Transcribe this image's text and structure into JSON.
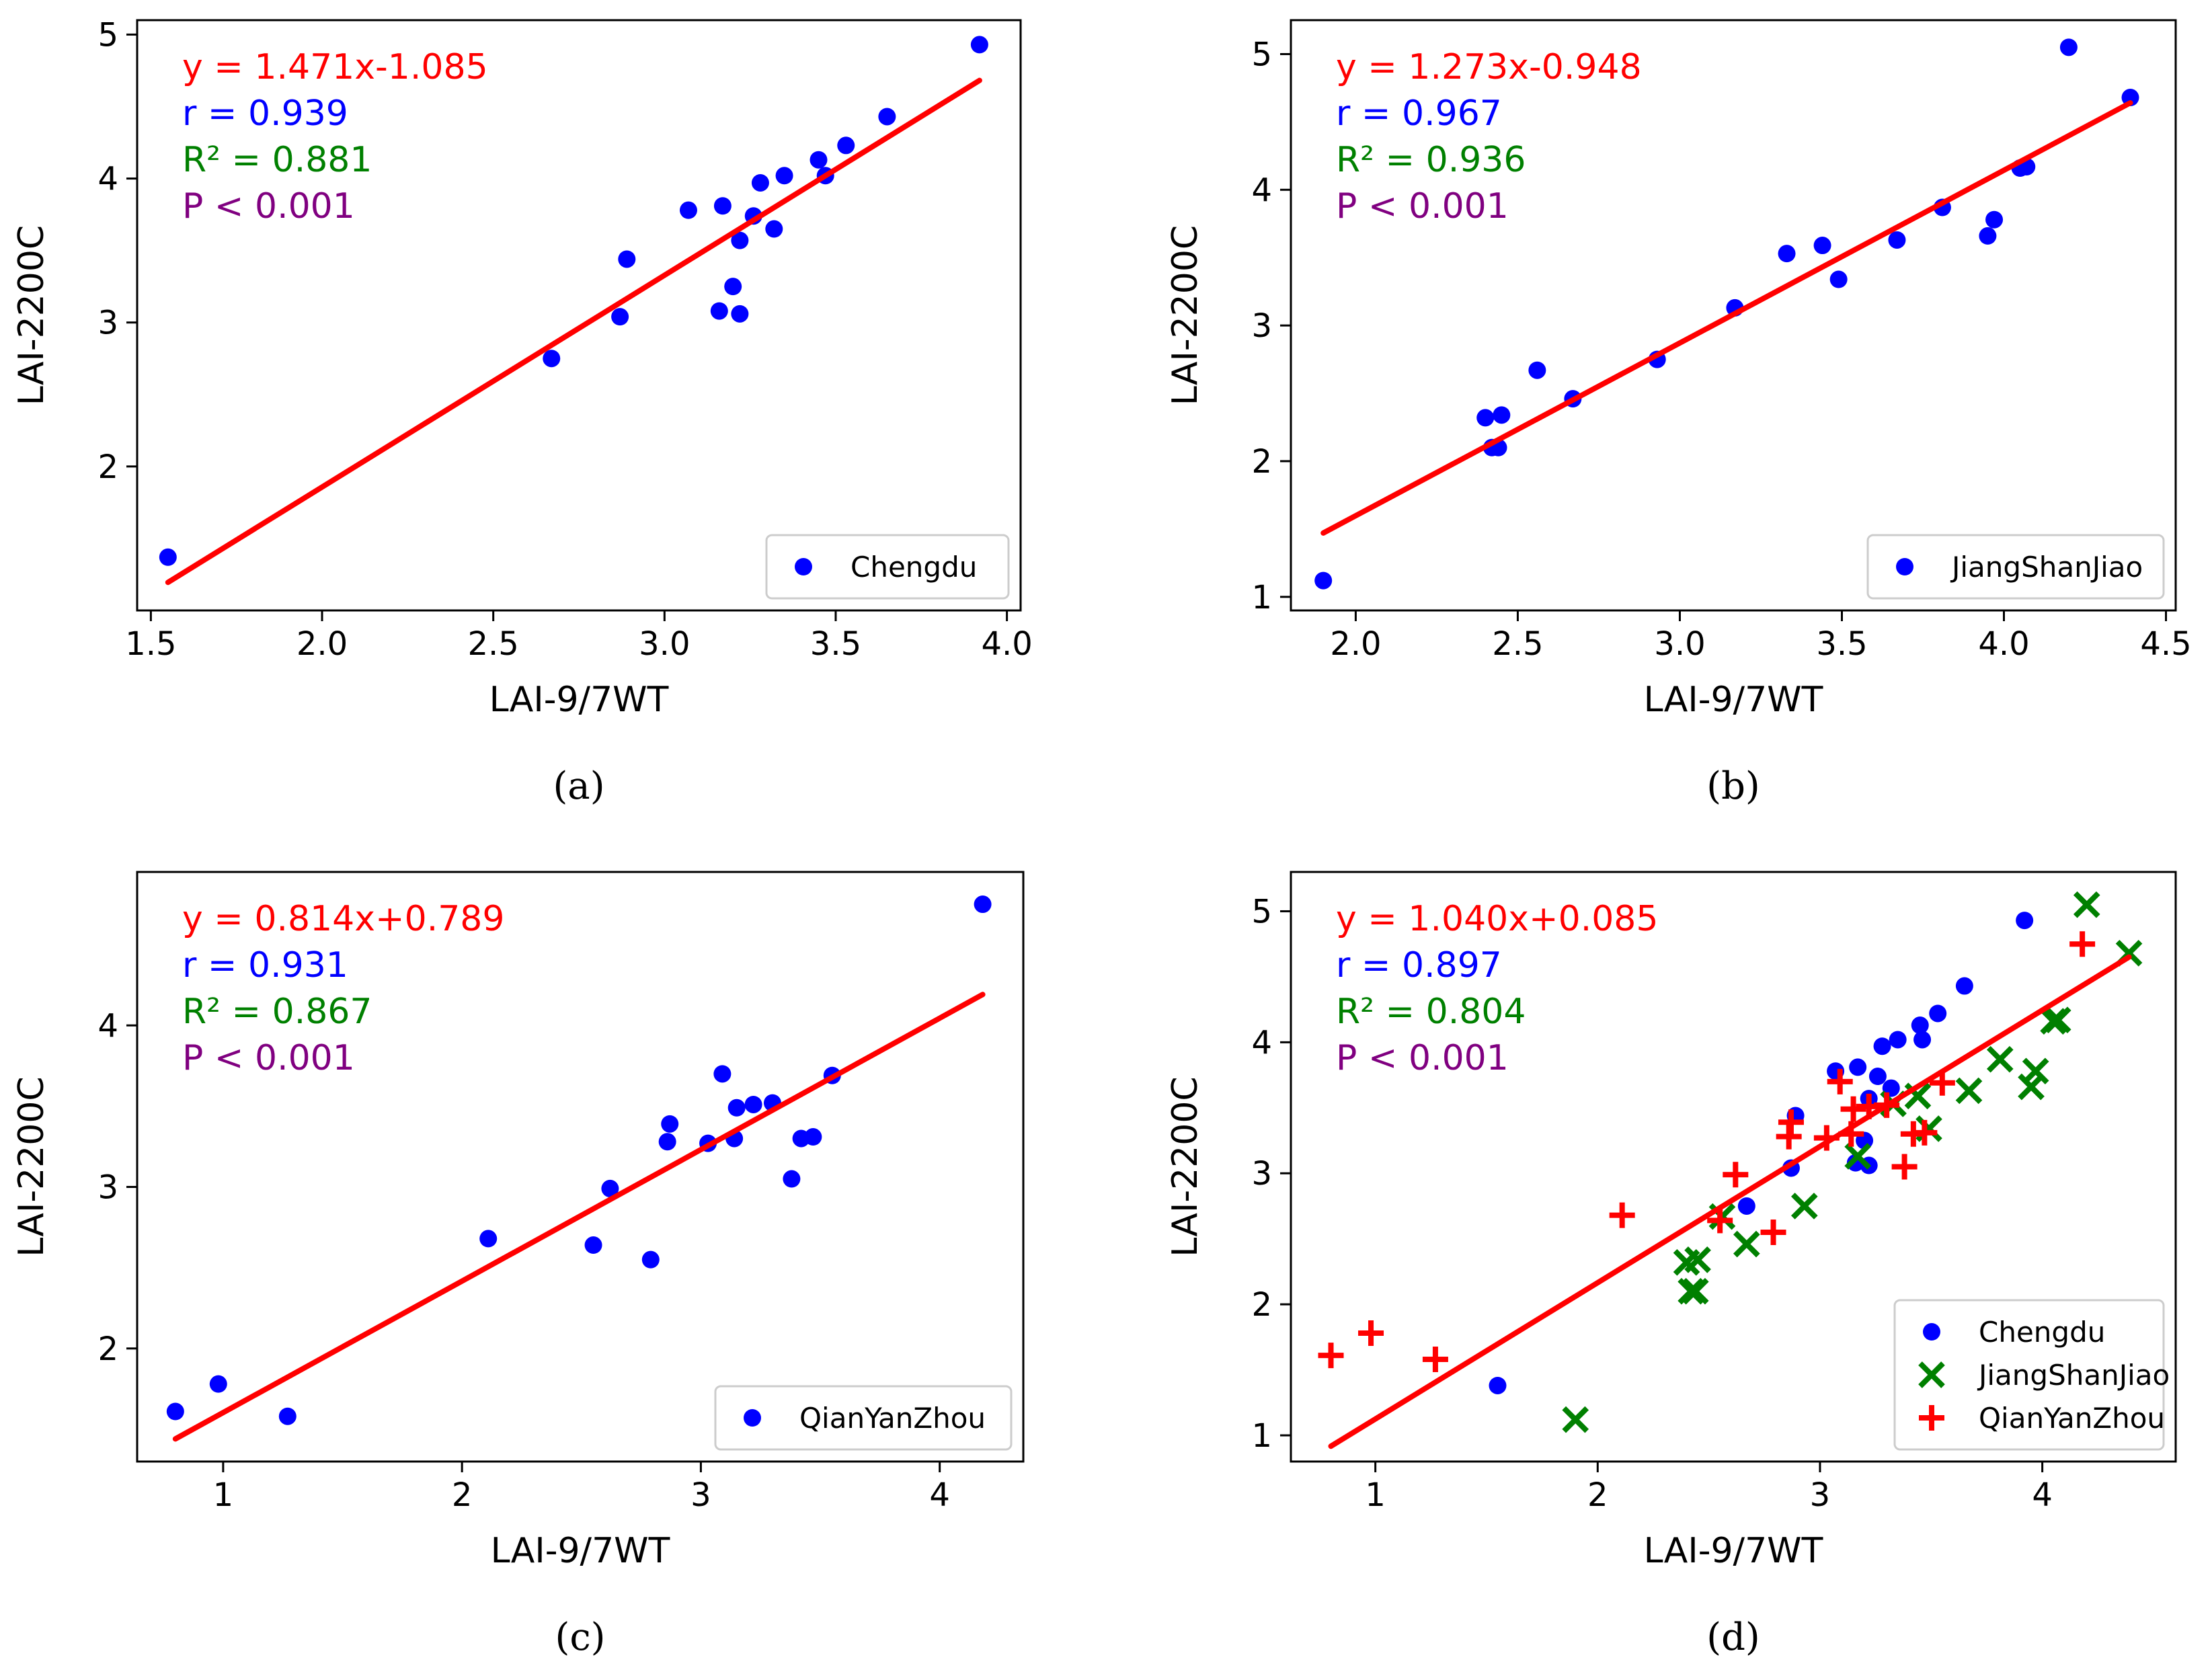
{
  "colors": {
    "regression": "#ff0000",
    "chengdu": "#0000ff",
    "jiangshanjiao": "#008000",
    "qianyanzhou": "#ff0000",
    "eq_color": "#ff0000",
    "r_color": "#0000ff",
    "r2_color": "#008000",
    "p_color": "#800080"
  },
  "chart_data": [
    {
      "type": "scatter",
      "panel_label": "(a)",
      "xlabel": "LAI-9/7WT",
      "ylabel": "LAI-2200C",
      "xlim": [
        1.46,
        4.04
      ],
      "ylim": [
        1.0,
        5.1
      ],
      "xticks": [
        1.5,
        2.0,
        2.5,
        3.0,
        3.5,
        4.0
      ],
      "xtick_labels": [
        "1.5",
        "2.0",
        "2.5",
        "3.0",
        "3.5",
        "4.0"
      ],
      "yticks": [
        2,
        3,
        4,
        5
      ],
      "ytick_labels": [
        "2",
        "3",
        "4",
        "5"
      ],
      "legend_position": "lower-right",
      "stats": {
        "equation": "y = 1.471x-1.085",
        "r": "r = 0.939",
        "r2": "R² = 0.881",
        "p": "P < 0.001"
      },
      "fit": {
        "slope": 1.471,
        "intercept": -1.085,
        "x_range": [
          1.55,
          3.92
        ]
      },
      "series": [
        {
          "name": "Chengdu",
          "marker": "dot",
          "color": "#0000ff",
          "points": [
            [
              1.55,
              1.37
            ],
            [
              2.67,
              2.75
            ],
            [
              2.87,
              3.04
            ],
            [
              2.89,
              3.44
            ],
            [
              3.07,
              3.78
            ],
            [
              3.16,
              3.08
            ],
            [
              3.17,
              3.81
            ],
            [
              3.2,
              3.25
            ],
            [
              3.22,
              3.06
            ],
            [
              3.22,
              3.57
            ],
            [
              3.26,
              3.74
            ],
            [
              3.28,
              3.97
            ],
            [
              3.32,
              3.65
            ],
            [
              3.35,
              4.02
            ],
            [
              3.45,
              4.13
            ],
            [
              3.47,
              4.02
            ],
            [
              3.53,
              4.23
            ],
            [
              3.65,
              4.43
            ],
            [
              3.92,
              4.93
            ]
          ]
        }
      ]
    },
    {
      "type": "scatter",
      "panel_label": "(b)",
      "xlabel": "LAI-9/7WT",
      "ylabel": "LAI-2200C",
      "xlim": [
        1.8,
        4.53
      ],
      "ylim": [
        0.9,
        5.25
      ],
      "xticks": [
        2.0,
        2.5,
        3.0,
        3.5,
        4.0,
        4.5
      ],
      "xtick_labels": [
        "2.0",
        "2.5",
        "3.0",
        "3.5",
        "4.0",
        "4.5"
      ],
      "yticks": [
        1,
        2,
        3,
        4,
        5
      ],
      "ytick_labels": [
        "1",
        "2",
        "3",
        "4",
        "5"
      ],
      "legend_position": "lower-right",
      "stats": {
        "equation": "y = 1.273x-0.948",
        "r": "r = 0.967",
        "r2": "R² = 0.936",
        "p": "P < 0.001"
      },
      "fit": {
        "slope": 1.273,
        "intercept": -0.948,
        "x_range": [
          1.9,
          4.39
        ]
      },
      "series": [
        {
          "name": "JiangShanJiao",
          "marker": "dot",
          "color": "#0000ff",
          "points": [
            [
              1.9,
              1.12
            ],
            [
              2.4,
              2.32
            ],
            [
              2.42,
              2.1
            ],
            [
              2.44,
              2.1
            ],
            [
              2.45,
              2.34
            ],
            [
              2.56,
              2.67
            ],
            [
              2.67,
              2.46
            ],
            [
              2.93,
              2.75
            ],
            [
              3.17,
              3.13
            ],
            [
              3.33,
              3.53
            ],
            [
              3.44,
              3.59
            ],
            [
              3.49,
              3.34
            ],
            [
              3.67,
              3.63
            ],
            [
              3.81,
              3.87
            ],
            [
              3.95,
              3.66
            ],
            [
              3.97,
              3.78
            ],
            [
              4.05,
              4.16
            ],
            [
              4.07,
              4.17
            ],
            [
              4.2,
              5.05
            ],
            [
              4.39,
              4.68
            ]
          ]
        }
      ]
    },
    {
      "type": "scatter",
      "panel_label": "(c)",
      "xlabel": "LAI-9/7WT",
      "ylabel": "LAI-2200C",
      "xlim": [
        0.64,
        4.35
      ],
      "ylim": [
        1.3,
        4.95
      ],
      "xticks": [
        1,
        2,
        3,
        4
      ],
      "xtick_labels": [
        "1",
        "2",
        "3",
        "4"
      ],
      "yticks": [
        2,
        3,
        4
      ],
      "ytick_labels": [
        "2",
        "3",
        "4"
      ],
      "legend_position": "lower-right",
      "stats": {
        "equation": "y = 0.814x+0.789",
        "r": "r = 0.931",
        "r2": "R² = 0.867",
        "p": "P < 0.001"
      },
      "fit": {
        "slope": 0.814,
        "intercept": 0.789,
        "x_range": [
          0.8,
          4.18
        ]
      },
      "series": [
        {
          "name": "QianYanZhou",
          "marker": "dot",
          "color": "#0000ff",
          "points": [
            [
              0.8,
              1.61
            ],
            [
              0.98,
              1.78
            ],
            [
              1.27,
              1.58
            ],
            [
              2.11,
              2.68
            ],
            [
              2.55,
              2.64
            ],
            [
              2.62,
              2.99
            ],
            [
              2.79,
              2.55
            ],
            [
              2.86,
              3.28
            ],
            [
              2.87,
              3.39
            ],
            [
              3.03,
              3.27
            ],
            [
              3.09,
              3.7
            ],
            [
              3.14,
              3.3
            ],
            [
              3.15,
              3.49
            ],
            [
              3.22,
              3.51
            ],
            [
              3.3,
              3.52
            ],
            [
              3.38,
              3.05
            ],
            [
              3.42,
              3.3
            ],
            [
              3.47,
              3.31
            ],
            [
              3.55,
              3.69
            ],
            [
              4.18,
              4.75
            ]
          ]
        }
      ]
    },
    {
      "type": "scatter",
      "panel_label": "(d)",
      "xlabel": "LAI-9/7WT",
      "ylabel": "LAI-2200C",
      "xlim": [
        0.62,
        4.6
      ],
      "ylim": [
        0.8,
        5.3
      ],
      "xticks": [
        1,
        2,
        3,
        4
      ],
      "xtick_labels": [
        "1",
        "2",
        "3",
        "4"
      ],
      "yticks": [
        1,
        2,
        3,
        4,
        5
      ],
      "ytick_labels": [
        "1",
        "2",
        "3",
        "4",
        "5"
      ],
      "legend_position": "lower-right",
      "stats": {
        "equation": "y = 1.040x+0.085",
        "r": "r = 0.897",
        "r2": "R² = 0.804",
        "p": "P < 0.001"
      },
      "fit": {
        "slope": 1.04,
        "intercept": 0.085,
        "x_range": [
          0.8,
          4.39
        ]
      },
      "series": [
        {
          "name": "Chengdu",
          "marker": "dot",
          "color": "#0000ff",
          "points": [
            [
              1.55,
              1.38
            ],
            [
              2.67,
              2.75
            ],
            [
              2.87,
              3.04
            ],
            [
              2.89,
              3.44
            ],
            [
              3.07,
              3.78
            ],
            [
              3.16,
              3.08
            ],
            [
              3.17,
              3.81
            ],
            [
              3.2,
              3.25
            ],
            [
              3.22,
              3.06
            ],
            [
              3.22,
              3.57
            ],
            [
              3.26,
              3.74
            ],
            [
              3.28,
              3.97
            ],
            [
              3.32,
              3.65
            ],
            [
              3.35,
              4.02
            ],
            [
              3.45,
              4.13
            ],
            [
              3.46,
              4.02
            ],
            [
              3.53,
              4.22
            ],
            [
              3.65,
              4.43
            ],
            [
              3.92,
              4.93
            ]
          ]
        },
        {
          "name": "JiangShanJiao",
          "marker": "x",
          "color": "#008000",
          "points": [
            [
              1.9,
              1.12
            ],
            [
              2.4,
              2.32
            ],
            [
              2.42,
              2.1
            ],
            [
              2.44,
              2.1
            ],
            [
              2.45,
              2.34
            ],
            [
              2.56,
              2.67
            ],
            [
              2.67,
              2.46
            ],
            [
              2.93,
              2.75
            ],
            [
              3.17,
              3.13
            ],
            [
              3.33,
              3.53
            ],
            [
              3.44,
              3.59
            ],
            [
              3.49,
              3.34
            ],
            [
              3.67,
              3.63
            ],
            [
              3.81,
              3.87
            ],
            [
              3.95,
              3.66
            ],
            [
              3.97,
              3.78
            ],
            [
              4.05,
              4.16
            ],
            [
              4.07,
              4.17
            ],
            [
              4.2,
              5.05
            ],
            [
              4.39,
              4.68
            ]
          ]
        },
        {
          "name": "QianYanZhou",
          "marker": "plus",
          "color": "#ff0000",
          "points": [
            [
              0.8,
              1.61
            ],
            [
              0.98,
              1.78
            ],
            [
              1.27,
              1.58
            ],
            [
              2.11,
              2.68
            ],
            [
              2.55,
              2.64
            ],
            [
              2.62,
              2.99
            ],
            [
              2.79,
              2.55
            ],
            [
              2.86,
              3.28
            ],
            [
              2.87,
              3.39
            ],
            [
              3.03,
              3.27
            ],
            [
              3.09,
              3.7
            ],
            [
              3.14,
              3.3
            ],
            [
              3.15,
              3.49
            ],
            [
              3.22,
              3.51
            ],
            [
              3.3,
              3.52
            ],
            [
              3.38,
              3.05
            ],
            [
              3.42,
              3.3
            ],
            [
              3.47,
              3.31
            ],
            [
              3.55,
              3.69
            ],
            [
              4.18,
              4.75
            ]
          ]
        }
      ]
    }
  ]
}
